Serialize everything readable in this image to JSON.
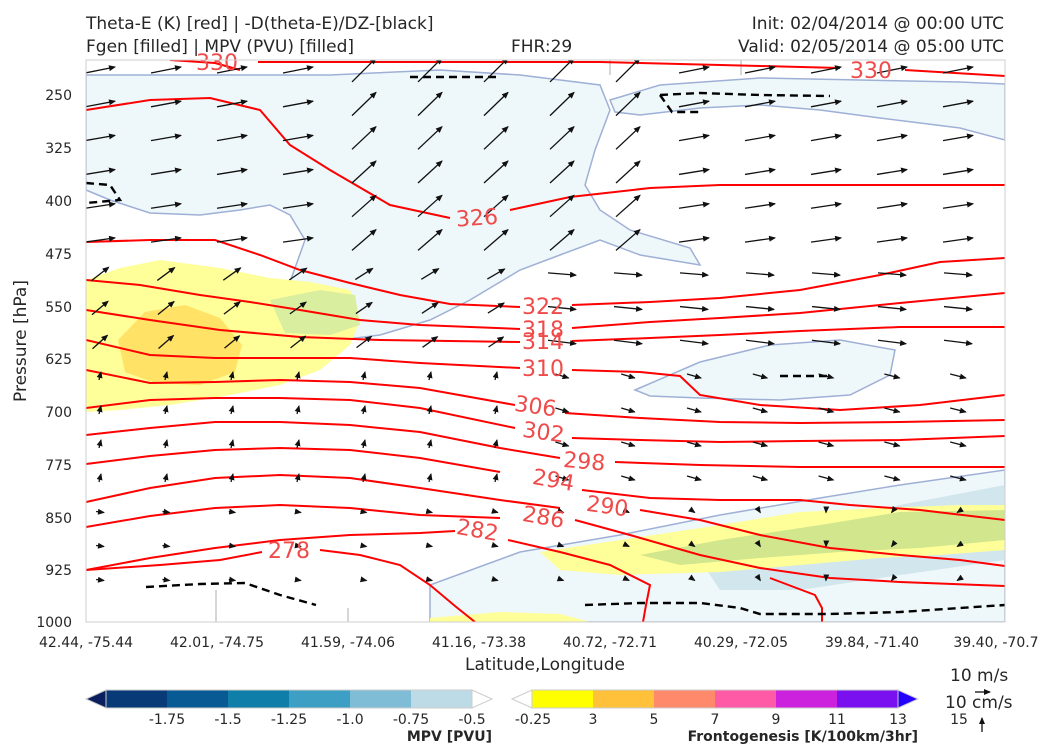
{
  "header": {
    "title_left_1": "Theta-E (K) [red] | -D(theta-E)/DZ-[black]",
    "title_left_2": "Fgen [filled] | MPV (PVU) [filled]",
    "title_center": "FHR:29",
    "title_right_1": "Init: 02/04/2014 @ 00:00 UTC",
    "title_right_2": "Valid: 02/05/2014 @ 05:00 UTC"
  },
  "colors": {
    "theta_e": "#ff0000",
    "theta_e_label": "#ef4b4b",
    "instability": "#000000",
    "mpv_outline": "#9fb0d6",
    "wind": "#111111"
  },
  "chart_data": {
    "type": "cross-section",
    "xlabel": "Latitude,Longitude",
    "ylabel": "Pressure [hPa]",
    "y_scale": "log",
    "ylim": [
      1000,
      200
    ],
    "x_ticks": [
      "42.44, -75.44",
      "42.01, -74.75",
      "41.59, -74.06",
      "41.16, -73.38",
      "40.72, -72.71",
      "40.29, -72.05",
      "39.84, -71.40",
      "39.40, -70.7"
    ],
    "y_ticks": [
      250,
      325,
      400,
      475,
      550,
      625,
      700,
      775,
      850,
      925,
      1000
    ],
    "theta_e_contours": [
      {
        "value": 330,
        "label": "330"
      },
      {
        "value": 326,
        "label": "326"
      },
      {
        "value": 322,
        "label": "322"
      },
      {
        "value": 318,
        "label": "318"
      },
      {
        "value": 314,
        "label": "314"
      },
      {
        "value": 310,
        "label": "310"
      },
      {
        "value": 306,
        "label": "306"
      },
      {
        "value": 302,
        "label": "302"
      },
      {
        "value": 298,
        "label": "298"
      },
      {
        "value": 294,
        "label": "294"
      },
      {
        "value": 290,
        "label": "290"
      },
      {
        "value": 286,
        "label": "286"
      },
      {
        "value": 282,
        "label": "282"
      },
      {
        "value": 278,
        "label": "278"
      }
    ],
    "wind_reference": {
      "horizontal": "10 m/s",
      "vertical": "10 cm/s"
    },
    "colorbars": [
      {
        "label": "MPV [PVU]",
        "ticks": [
          "-1.75",
          "-1.5",
          "-1.25",
          "-1.0",
          "-0.75",
          "-0.5",
          "-0.25"
        ],
        "colors": [
          "#0b1f5e",
          "#083a78",
          "#075a94",
          "#0f7ea8",
          "#3e9fc4",
          "#7fbcd6",
          "#bcdbe6",
          "#ffffff"
        ]
      },
      {
        "label": "Frontogenesis [K/100km/3hr]",
        "ticks": [
          "3",
          "5",
          "7",
          "9",
          "11",
          "13",
          "15"
        ],
        "colors": [
          "#ffffff",
          "#ffff00",
          "#ffc03a",
          "#ff8a6b",
          "#ff5aa6",
          "#cc22dd",
          "#7a10f0",
          "#2400ff"
        ]
      }
    ]
  }
}
